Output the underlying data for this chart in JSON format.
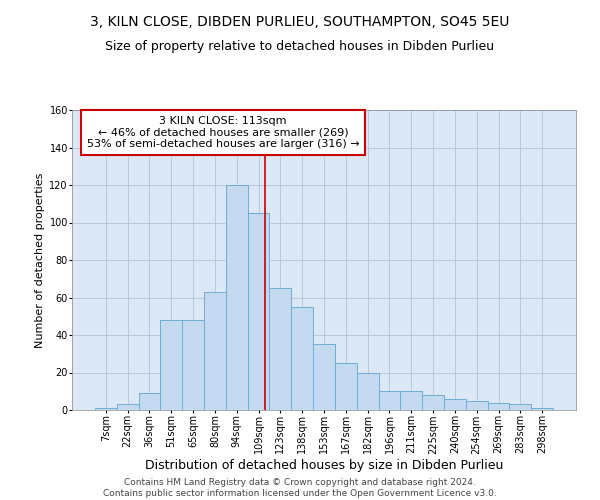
{
  "title": "3, KILN CLOSE, DIBDEN PURLIEU, SOUTHAMPTON, SO45 5EU",
  "subtitle": "Size of property relative to detached houses in Dibden Purlieu",
  "xlabel": "Distribution of detached houses by size in Dibden Purlieu",
  "ylabel": "Number of detached properties",
  "bin_labels": [
    "7sqm",
    "22sqm",
    "36sqm",
    "51sqm",
    "65sqm",
    "80sqm",
    "94sqm",
    "109sqm",
    "123sqm",
    "138sqm",
    "153sqm",
    "167sqm",
    "182sqm",
    "196sqm",
    "211sqm",
    "225sqm",
    "240sqm",
    "254sqm",
    "269sqm",
    "283sqm",
    "298sqm"
  ],
  "bar_heights": [
    1,
    3,
    9,
    48,
    48,
    63,
    120,
    105,
    65,
    55,
    35,
    25,
    20,
    10,
    10,
    8,
    6,
    5,
    4,
    3,
    1
  ],
  "bar_color": "#c5d9f0",
  "bar_edge_color": "#6baed6",
  "property_label": "3 KILN CLOSE: 113sqm",
  "annotation_line1": "← 46% of detached houses are smaller (269)",
  "annotation_line2": "53% of semi-detached houses are larger (316) →",
  "vline_color": "#cc0000",
  "annotation_box_edge_color": "#cc0000",
  "background_color": "#ffffff",
  "plot_bg_color": "#dce8f5",
  "grid_color": "#b0c4de",
  "footer_line1": "Contains HM Land Registry data © Crown copyright and database right 2024.",
  "footer_line2": "Contains public sector information licensed under the Open Government Licence v3.0.",
  "ylim": [
    0,
    160
  ],
  "yticks": [
    0,
    20,
    40,
    60,
    80,
    100,
    120,
    140,
    160
  ],
  "title_fontsize": 10,
  "subtitle_fontsize": 9,
  "xlabel_fontsize": 9,
  "ylabel_fontsize": 8,
  "tick_fontsize": 7,
  "annotation_fontsize": 8,
  "footer_fontsize": 6.5,
  "vline_x_index": 7.28
}
